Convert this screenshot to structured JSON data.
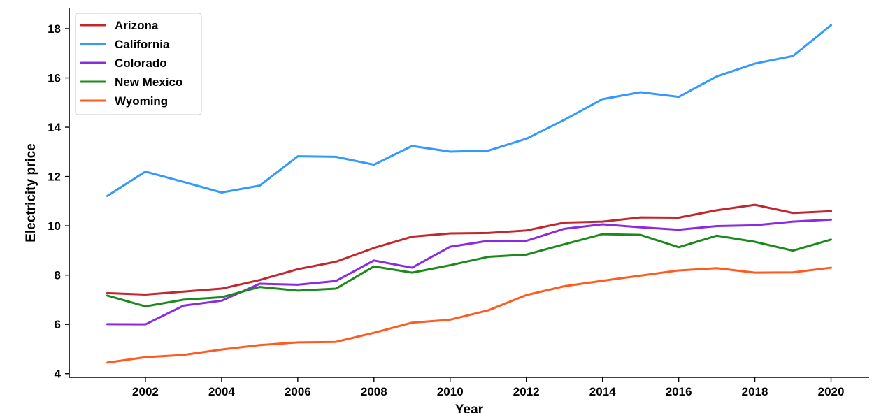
{
  "chart_data": {
    "type": "line",
    "title": "",
    "xlabel": "Year",
    "ylabel": "Electricity price",
    "x": [
      2001,
      2002,
      2003,
      2004,
      2005,
      2006,
      2007,
      2008,
      2009,
      2010,
      2011,
      2012,
      2013,
      2014,
      2015,
      2016,
      2017,
      2018,
      2019,
      2020
    ],
    "xlim": [
      2000,
      2021
    ],
    "ylim": [
      3.85,
      18.85
    ],
    "xticks": [
      2002,
      2004,
      2006,
      2008,
      2010,
      2012,
      2014,
      2016,
      2018,
      2020
    ],
    "yticks": [
      4,
      6,
      8,
      10,
      12,
      14,
      16,
      18
    ],
    "grid": false,
    "legend_position": "top-left",
    "series": [
      {
        "name": "Arizona",
        "color": "#c1272d",
        "values": [
          7.27,
          7.21,
          7.33,
          7.45,
          7.8,
          8.24,
          8.54,
          9.1,
          9.56,
          9.69,
          9.71,
          9.81,
          10.13,
          10.17,
          10.34,
          10.33,
          10.63,
          10.85,
          10.52,
          10.59
        ]
      },
      {
        "name": "California",
        "color": "#3399ff",
        "values": [
          11.21,
          12.2,
          11.78,
          11.35,
          11.63,
          12.82,
          12.8,
          12.48,
          13.24,
          13.01,
          13.05,
          13.53,
          14.3,
          15.14,
          15.42,
          15.23,
          16.06,
          16.58,
          16.89,
          18.14
        ]
      },
      {
        "name": "Colorado",
        "color": "#8a2be2",
        "values": [
          6.01,
          6.0,
          6.76,
          6.96,
          7.65,
          7.61,
          7.76,
          8.59,
          8.3,
          9.15,
          9.39,
          9.39,
          9.88,
          10.06,
          9.94,
          9.84,
          9.99,
          10.02,
          10.17,
          10.25
        ]
      },
      {
        "name": "New Mexico",
        "color": "#1a8a1a",
        "values": [
          7.17,
          6.73,
          7.0,
          7.1,
          7.52,
          7.37,
          7.45,
          8.35,
          8.1,
          8.4,
          8.74,
          8.83,
          9.25,
          9.66,
          9.63,
          9.13,
          9.6,
          9.35,
          8.99,
          9.44
        ]
      },
      {
        "name": "Wyoming",
        "color": "#ff5a1f",
        "values": [
          4.45,
          4.67,
          4.76,
          4.98,
          5.16,
          5.27,
          5.29,
          5.66,
          6.07,
          6.19,
          6.57,
          7.19,
          7.55,
          7.77,
          7.98,
          8.19,
          8.28,
          8.1,
          8.11,
          8.3
        ]
      }
    ]
  }
}
